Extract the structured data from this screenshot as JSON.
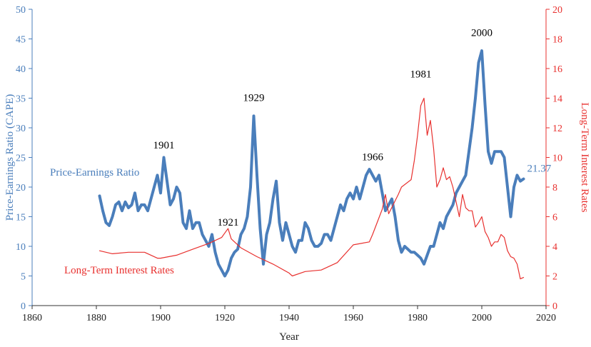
{
  "chart_data": {
    "type": "line",
    "xlabel": "Year",
    "y_left_label": "Price-Earnings Ratio (CAPE)",
    "y_right_label": "Long-Term Interest Rates",
    "xlim": [
      1860,
      2020
    ],
    "ylim_left": [
      0,
      50
    ],
    "ylim_right": [
      0,
      20
    ],
    "x_ticks": [
      "1860",
      "1880",
      "1900",
      "1920",
      "1940",
      "1960",
      "1980",
      "2000",
      "2020"
    ],
    "y_left_ticks": [
      "0",
      "5",
      "10",
      "15",
      "20",
      "25",
      "30",
      "35",
      "40",
      "45",
      "50"
    ],
    "y_right_ticks": [
      "0",
      "2",
      "4",
      "6",
      "8",
      "10",
      "12",
      "14",
      "16",
      "18",
      "20"
    ],
    "colors": {
      "pe": "#4a7ebb",
      "rates": "#e8312f"
    },
    "series": [
      {
        "name": "Price-Earnings Ratio",
        "axis": "left",
        "x": [
          1881,
          1882,
          1883,
          1884,
          1885,
          1886,
          1887,
          1888,
          1889,
          1890,
          1891,
          1892,
          1893,
          1894,
          1895,
          1896,
          1897,
          1898,
          1899,
          1900,
          1901,
          1902,
          1903,
          1904,
          1905,
          1906,
          1907,
          1908,
          1909,
          1910,
          1911,
          1912,
          1913,
          1914,
          1915,
          1916,
          1917,
          1918,
          1919,
          1920,
          1921,
          1922,
          1923,
          1924,
          1925,
          1926,
          1927,
          1928,
          1929,
          1930,
          1931,
          1932,
          1933,
          1934,
          1935,
          1936,
          1937,
          1938,
          1939,
          1940,
          1941,
          1942,
          1943,
          1944,
          1945,
          1946,
          1947,
          1948,
          1949,
          1950,
          1951,
          1952,
          1953,
          1954,
          1955,
          1956,
          1957,
          1958,
          1959,
          1960,
          1961,
          1962,
          1963,
          1964,
          1965,
          1966,
          1967,
          1968,
          1969,
          1970,
          1971,
          1972,
          1973,
          1974,
          1975,
          1976,
          1977,
          1978,
          1979,
          1980,
          1981,
          1982,
          1983,
          1984,
          1985,
          1986,
          1987,
          1988,
          1989,
          1990,
          1991,
          1992,
          1993,
          1994,
          1995,
          1996,
          1997,
          1998,
          1999,
          2000,
          2001,
          2002,
          2003,
          2004,
          2005,
          2006,
          2007,
          2008,
          2009,
          2010,
          2011,
          2012,
          2013
        ],
        "values": [
          18.5,
          16,
          14,
          13.5,
          15,
          17,
          17.5,
          16,
          17.5,
          16.5,
          17,
          19,
          16,
          17,
          17,
          16,
          18,
          20,
          22,
          19,
          25,
          21,
          17,
          18,
          20,
          19,
          14,
          13,
          16,
          13,
          14,
          14,
          12,
          11,
          10,
          12,
          9,
          7,
          6,
          5,
          6,
          8,
          9,
          9.5,
          12,
          13,
          15,
          20,
          32,
          22,
          13,
          7,
          12,
          14,
          18,
          21,
          14,
          11,
          14,
          12,
          10,
          9,
          11,
          11,
          14,
          13,
          11,
          10,
          10,
          10.5,
          12,
          12,
          11,
          13,
          15,
          17,
          16,
          18,
          19,
          18,
          20,
          18,
          20,
          22,
          23,
          22,
          21,
          22,
          19,
          16,
          17,
          18,
          15,
          11,
          9,
          10,
          9.5,
          9,
          9,
          8.5,
          8,
          7,
          8.5,
          10,
          10,
          12,
          14,
          13,
          15,
          16,
          17,
          19,
          20,
          21,
          22,
          26,
          30,
          35,
          41,
          43,
          34,
          26,
          24,
          26,
          26,
          26,
          25,
          20,
          15,
          20,
          22,
          21,
          21.37
        ]
      },
      {
        "name": "Long-Term Interest Rates",
        "axis": "right",
        "x": [
          1881,
          1885,
          1890,
          1895,
          1899,
          1900,
          1905,
          1910,
          1915,
          1919,
          1920,
          1921,
          1922,
          1925,
          1930,
          1935,
          1940,
          1941,
          1945,
          1950,
          1955,
          1960,
          1965,
          1966,
          1969,
          1970,
          1971,
          1974,
          1975,
          1978,
          1979,
          1980,
          1981,
          1982,
          1983,
          1984,
          1985,
          1986,
          1987,
          1988,
          1989,
          1990,
          1991,
          1992,
          1993,
          1994,
          1995,
          1996,
          1997,
          1998,
          1999,
          2000,
          2001,
          2002,
          2003,
          2004,
          2005,
          2006,
          2007,
          2008,
          2009,
          2010,
          2011,
          2012,
          2013
        ],
        "values": [
          3.7,
          3.5,
          3.6,
          3.6,
          3.2,
          3.2,
          3.4,
          3.8,
          4.2,
          4.6,
          4.9,
          5.2,
          4.5,
          3.9,
          3.3,
          2.8,
          2.2,
          2.0,
          2.3,
          2.4,
          2.9,
          4.1,
          4.3,
          4.8,
          6.5,
          7.5,
          6.2,
          7.5,
          8.0,
          8.5,
          9.8,
          11.5,
          13.5,
          14.0,
          11.5,
          12.5,
          10.6,
          8.0,
          8.5,
          9.3,
          8.5,
          8.7,
          8.0,
          7.0,
          6.0,
          7.5,
          6.6,
          6.4,
          6.4,
          5.3,
          5.6,
          6.0,
          5.0,
          4.6,
          4.0,
          4.3,
          4.3,
          4.8,
          4.6,
          3.7,
          3.3,
          3.2,
          2.8,
          1.8,
          1.9
        ]
      }
    ],
    "annotations": [
      {
        "label": "1901",
        "x": 1901,
        "axis": "left",
        "y": 26.5
      },
      {
        "label": "1921",
        "x": 1921,
        "axis": "left",
        "y": 13.5
      },
      {
        "label": "1929",
        "x": 1929,
        "axis": "left",
        "y": 34.5
      },
      {
        "label": "1966",
        "x": 1966,
        "axis": "left",
        "y": 24.5
      },
      {
        "label": "1981",
        "x": 1981,
        "axis": "left",
        "y": 38.5
      },
      {
        "label": "2000",
        "x": 2000,
        "axis": "left",
        "y": 45.5
      }
    ],
    "series_labels": {
      "pe": "Price-Earnings  Ratio",
      "rates": "Long-Term Interest Rates"
    },
    "end_value_label": "21.37"
  }
}
